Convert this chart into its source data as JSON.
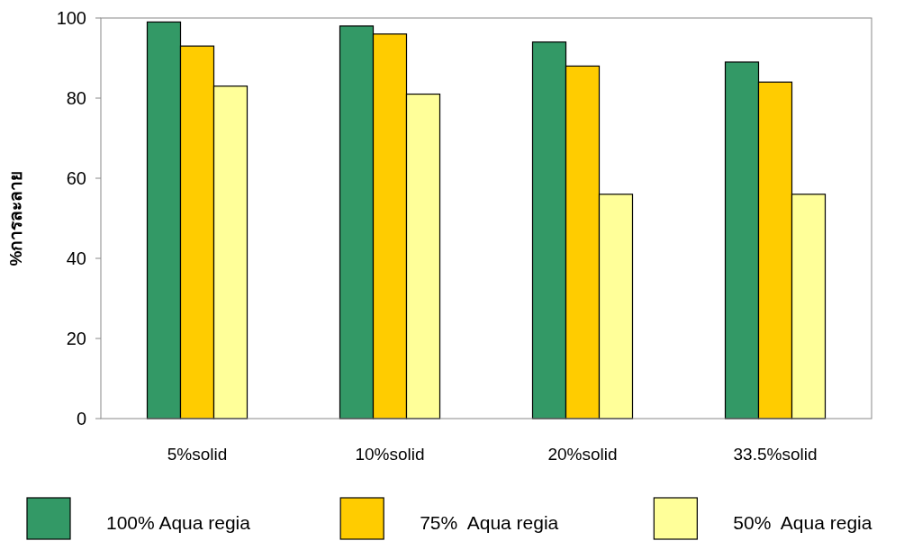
{
  "chart_data": {
    "type": "bar",
    "ylabel": "%การละลาย",
    "categories": [
      "5%solid",
      "10%solid",
      "20%solid",
      "33.5%solid"
    ],
    "series": [
      {
        "name": "100% Aqua regia",
        "color": "#339966",
        "values": [
          99,
          98,
          94,
          89
        ]
      },
      {
        "name": "75%  Aqua regia",
        "color": "#ffcc00",
        "values": [
          93,
          96,
          88,
          84
        ]
      },
      {
        "name": "50%  Aqua regia",
        "color": "#ffff99",
        "values": [
          83,
          81,
          56,
          56
        ]
      }
    ],
    "ylim": [
      0,
      100
    ],
    "yticks": [
      0,
      20,
      40,
      60,
      80,
      100
    ],
    "legend": "bottom"
  }
}
